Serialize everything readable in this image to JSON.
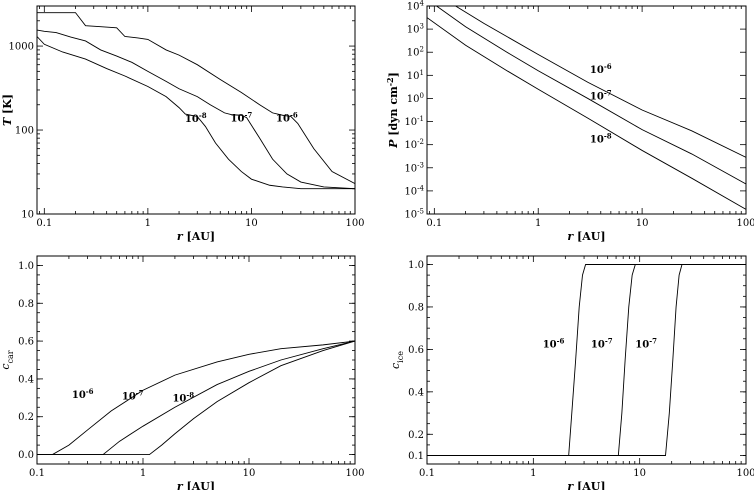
{
  "chart_data": [
    {
      "id": "temperature",
      "type": "line",
      "xlabel": "r [AU]",
      "ylabel": "T [K]",
      "xscale": "log",
      "yscale": "log",
      "xlim": [
        0.085,
        100
      ],
      "ylim": [
        10,
        3000
      ],
      "xticks": [
        {
          "value": 0.1,
          "label": "0.1"
        },
        {
          "value": 1,
          "label": "1"
        },
        {
          "value": 10,
          "label": "10"
        },
        {
          "value": 100,
          "label": "100"
        }
      ],
      "yticks": [
        {
          "value": 10,
          "label": "10"
        },
        {
          "value": 100,
          "label": "100"
        },
        {
          "value": 1000,
          "label": "1000"
        }
      ],
      "series": [
        {
          "name": "10-8",
          "x": [
            0.085,
            0.1,
            0.15,
            0.25,
            0.4,
            0.6,
            1,
            1.5,
            2.0,
            2.3,
            2.6,
            3.0,
            3.6,
            4.5,
            6,
            8,
            10,
            15,
            20,
            30,
            50,
            100
          ],
          "y": [
            1300,
            1050,
            850,
            700,
            540,
            440,
            330,
            250,
            185,
            155,
            150,
            145,
            110,
            70,
            45,
            32,
            26,
            22,
            21,
            20,
            20,
            20
          ]
        },
        {
          "name": "10-7",
          "x": [
            0.085,
            0.1,
            0.13,
            0.18,
            0.25,
            0.35,
            0.5,
            0.7,
            1,
            1.5,
            2,
            3,
            4,
            5.5,
            6.5,
            8,
            9,
            12,
            16,
            22,
            30,
            50,
            100
          ],
          "y": [
            1550,
            1500,
            1450,
            1280,
            1150,
            900,
            760,
            640,
            500,
            380,
            310,
            250,
            200,
            160,
            152,
            150,
            140,
            80,
            45,
            30,
            24,
            21,
            20
          ]
        },
        {
          "name": "10-6",
          "x": [
            0.085,
            0.1,
            0.15,
            0.2,
            0.25,
            0.35,
            0.5,
            0.6,
            0.8,
            1,
            1.5,
            2,
            3,
            5,
            8,
            12,
            16,
            20,
            24,
            28,
            40,
            60,
            100
          ],
          "y": [
            2500,
            2500,
            2500,
            2500,
            1750,
            1700,
            1650,
            1300,
            1250,
            1200,
            900,
            780,
            600,
            400,
            280,
            200,
            160,
            150,
            145,
            120,
            60,
            32,
            23
          ]
        }
      ],
      "annotations": [
        {
          "base": "10",
          "exp": "-8",
          "x": 2.9,
          "y": 125
        },
        {
          "base": "10",
          "exp": "-7",
          "x": 8.0,
          "y": 127
        },
        {
          "base": "10",
          "exp": "-6",
          "x": 22.0,
          "y": 127
        }
      ]
    },
    {
      "id": "pressure",
      "type": "line",
      "xlabel": "r [AU]",
      "ylabel": "P [dyn cm-2]",
      "xscale": "log",
      "yscale": "log",
      "xlim": [
        0.085,
        100
      ],
      "ylim": [
        -5,
        4
      ],
      "xticks": [
        {
          "value": 0.1,
          "label": "0.1"
        },
        {
          "value": 1,
          "label": "1"
        },
        {
          "value": 10,
          "label": "10"
        },
        {
          "value": 100,
          "label": "100"
        }
      ],
      "yticks": [
        {
          "value": 4,
          "base": "10",
          "exp": "4"
        },
        {
          "value": 3,
          "base": "10",
          "exp": "3"
        },
        {
          "value": 2,
          "base": "10",
          "exp": "2"
        },
        {
          "value": 1,
          "base": "10",
          "exp": "1"
        },
        {
          "value": 0,
          "base": "10",
          "exp": "0"
        },
        {
          "value": -1,
          "base": "10",
          "exp": "-1"
        },
        {
          "value": -2,
          "base": "10",
          "exp": "-2"
        },
        {
          "value": -3,
          "base": "10",
          "exp": "-3"
        },
        {
          "value": -4,
          "base": "10",
          "exp": "-4"
        },
        {
          "value": -5,
          "base": "10",
          "exp": "-5"
        }
      ],
      "series": [
        {
          "name": "10-6",
          "x": [
            0.16,
            0.3,
            1,
            3,
            10,
            30,
            100
          ],
          "y": [
            4.0,
            3.25,
            1.9,
            0.7,
            -0.5,
            -1.4,
            -2.55
          ]
        },
        {
          "name": "10-7",
          "x": [
            0.105,
            0.2,
            0.5,
            1,
            3,
            10,
            30,
            100
          ],
          "y": [
            4.0,
            3.1,
            2.0,
            1.2,
            0.0,
            -1.35,
            -2.4,
            -3.7
          ]
        },
        {
          "name": "10-8",
          "x": [
            0.085,
            0.2,
            0.5,
            1,
            3,
            10,
            30,
            100
          ],
          "y": [
            3.5,
            2.3,
            1.2,
            0.4,
            -0.85,
            -2.25,
            -3.45,
            -4.8
          ]
        }
      ],
      "annotations": [
        {
          "base": "10",
          "exp": "-6",
          "x": 4.0,
          "y": 1.1
        },
        {
          "base": "10",
          "exp": "-7",
          "x": 4.0,
          "y": -0.05
        },
        {
          "base": "10",
          "exp": "-8",
          "x": 4.0,
          "y": -1.9
        }
      ]
    },
    {
      "id": "carbon-fraction",
      "type": "line",
      "xlabel": "r [AU]",
      "ylabel": "c car",
      "xscale": "log",
      "yscale": "linear",
      "xlim": [
        0.1,
        100
      ],
      "ylim": [
        -0.05,
        1.05
      ],
      "xticks": [
        {
          "value": 0.1,
          "label": "0.1"
        },
        {
          "value": 1,
          "label": "1"
        },
        {
          "value": 10,
          "label": "10"
        },
        {
          "value": 100,
          "label": "100"
        }
      ],
      "yticks": [
        {
          "value": 0.0,
          "label": "0.0"
        },
        {
          "value": 0.2,
          "label": "0.2"
        },
        {
          "value": 0.4,
          "label": "0.4"
        },
        {
          "value": 0.6,
          "label": "0.6"
        },
        {
          "value": 0.8,
          "label": "0.8"
        },
        {
          "value": 1.0,
          "label": "1.0"
        }
      ],
      "series": [
        {
          "name": "10-6",
          "x": [
            0.1,
            0.14,
            0.2,
            0.3,
            0.5,
            1,
            2,
            5,
            10,
            20,
            50,
            100
          ],
          "y": [
            0.0,
            0.0,
            0.05,
            0.13,
            0.23,
            0.34,
            0.42,
            0.49,
            0.53,
            0.56,
            0.58,
            0.6
          ]
        },
        {
          "name": "10-7",
          "x": [
            0.1,
            0.42,
            0.6,
            1,
            2,
            5,
            10,
            20,
            50,
            100
          ],
          "y": [
            0.0,
            0.0,
            0.07,
            0.15,
            0.25,
            0.37,
            0.44,
            0.5,
            0.56,
            0.6
          ]
        },
        {
          "name": "10-8",
          "x": [
            0.1,
            1.15,
            1.5,
            2,
            3,
            5,
            10,
            20,
            50,
            100
          ],
          "y": [
            0.0,
            0.0,
            0.05,
            0.11,
            0.19,
            0.28,
            0.38,
            0.47,
            0.55,
            0.6
          ]
        }
      ],
      "annotations": [
        {
          "base": "10",
          "exp": "-6",
          "x": 0.27,
          "y": 0.3
        },
        {
          "base": "10",
          "exp": "-7",
          "x": 0.8,
          "y": 0.29
        },
        {
          "base": "10",
          "exp": "-8",
          "x": 2.4,
          "y": 0.28
        }
      ]
    },
    {
      "id": "ice-fraction",
      "type": "line",
      "xlabel": "r [AU]",
      "ylabel": "c ice",
      "xscale": "log",
      "yscale": "linear",
      "xlim": [
        0.1,
        100
      ],
      "ylim": [
        0.06,
        1.04
      ],
      "xticks": [
        {
          "value": 0.1,
          "label": "0.1"
        },
        {
          "value": 1,
          "label": "1"
        },
        {
          "value": 10,
          "label": "10"
        },
        {
          "value": 100,
          "label": "100"
        }
      ],
      "yticks": [
        {
          "value": 0.1,
          "label": "0.1"
        },
        {
          "value": 0.2,
          "label": "0.2"
        },
        {
          "value": 0.4,
          "label": "0.4"
        },
        {
          "value": 0.6,
          "label": "0.6"
        },
        {
          "value": 0.8,
          "label": "0.8"
        },
        {
          "value": 1.0,
          "label": "1.0"
        }
      ],
      "series": [
        {
          "name": "10-6",
          "x": [
            0.1,
            2.15,
            2.3,
            2.5,
            2.7,
            2.9,
            3.1,
            100
          ],
          "y": [
            0.1,
            0.1,
            0.3,
            0.55,
            0.8,
            0.95,
            1.0,
            1.0
          ]
        },
        {
          "name": "10-7",
          "x": [
            0.1,
            6.3,
            6.8,
            7.3,
            7.9,
            8.5,
            9.1,
            100
          ],
          "y": [
            0.1,
            0.1,
            0.3,
            0.55,
            0.8,
            0.95,
            1.0,
            1.0
          ]
        },
        {
          "name": "10-7",
          "x": [
            0.1,
            17.5,
            19,
            20.5,
            22,
            23.5,
            25,
            100
          ],
          "y": [
            0.1,
            0.1,
            0.3,
            0.55,
            0.8,
            0.95,
            1.0,
            1.0
          ]
        }
      ],
      "annotations": [
        {
          "base": "10",
          "exp": "-6",
          "x": 1.55,
          "y": 0.61
        },
        {
          "base": "10",
          "exp": "-7",
          "x": 4.4,
          "y": 0.61
        },
        {
          "base": "10",
          "exp": "-7",
          "x": 11.5,
          "y": 0.61
        }
      ]
    }
  ]
}
